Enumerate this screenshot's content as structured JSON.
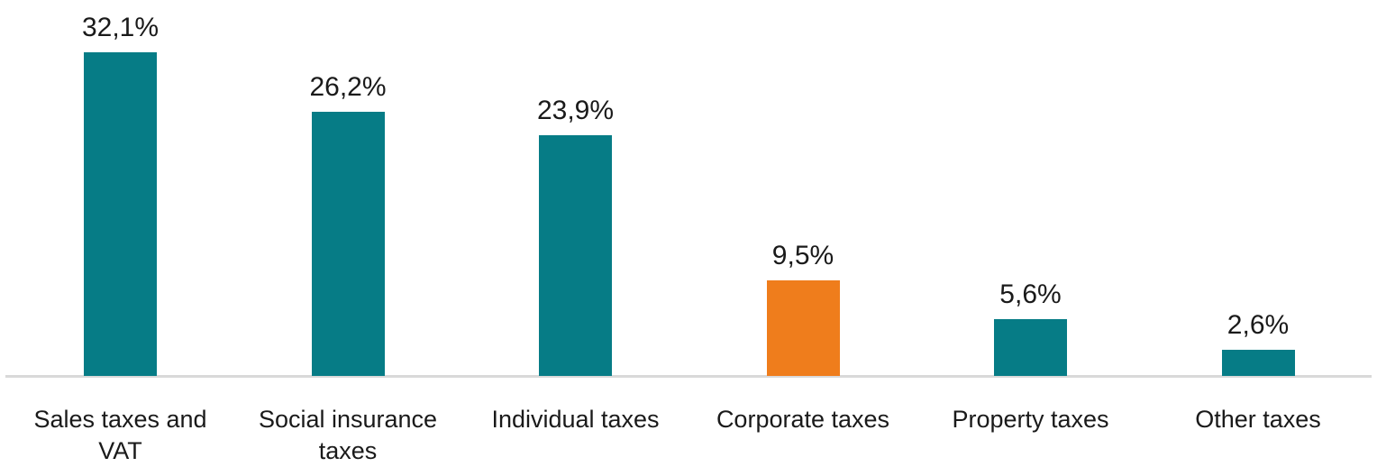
{
  "chart_data": {
    "type": "bar",
    "categories": [
      "Sales taxes and VAT",
      "Social insurance taxes",
      "Individual taxes",
      "Corporate taxes",
      "Property taxes",
      "Other taxes"
    ],
    "values": [
      32.1,
      26.2,
      23.9,
      9.5,
      5.6,
      2.6
    ],
    "value_labels": [
      "32,1%",
      "26,2%",
      "23,9%",
      "9,5%",
      "5,6%",
      "2,6%"
    ],
    "title": "",
    "xlabel": "",
    "ylabel": "",
    "ylim": [
      0,
      35
    ],
    "grid": false,
    "legend": "none",
    "decimal_separator": ",",
    "highlight_index": 3,
    "bar_colors": [
      "#067C86",
      "#067C86",
      "#067C86",
      "#EF7D1C",
      "#067C86",
      "#067C86"
    ],
    "colors": {
      "bar_default": "#067C86",
      "bar_highlight": "#EF7D1C",
      "baseline": "#D9D9D9",
      "label_text": "#1A1A1A",
      "background": "#FFFFFF"
    }
  }
}
